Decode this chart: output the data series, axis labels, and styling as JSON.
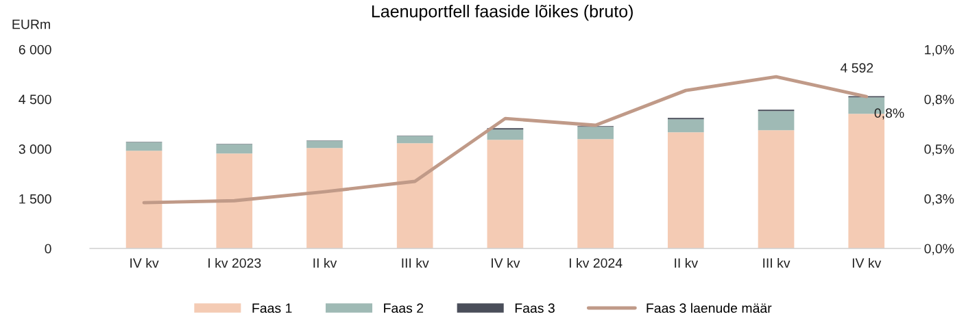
{
  "chart_data": {
    "type": "bar",
    "title": "Laenuportfell faaside lõikes (bruto)",
    "ylabel": "EURm",
    "categories": [
      "IV kv",
      "I kv 2023",
      "II kv",
      "III kv",
      "IV kv",
      "I kv 2024",
      "II kv",
      "III kv",
      "IV kv"
    ],
    "stacked": true,
    "series": [
      {
        "name": "Faas 1",
        "color": "#f4cbb4",
        "values": [
          2946,
          2863,
          3028,
          3172,
          3275,
          3296,
          3502,
          3564,
          4058
        ]
      },
      {
        "name": "Faas 2",
        "color": "#9fbab5",
        "values": [
          259,
          279,
          217,
          218,
          309,
          371,
          391,
          577,
          495
        ]
      },
      {
        "name": "Faas 3",
        "color": "#4a4e5a",
        "values": [
          10,
          10,
          10,
          10,
          42,
          20,
          42,
          41,
          39
        ]
      },
      {
        "name": "Faas 3 laenude määr",
        "type": "line",
        "axis": "y2",
        "color": "#c09a88",
        "values": [
          0.23,
          0.24,
          0.285,
          0.337,
          0.653,
          0.619,
          0.794,
          0.863,
          0.763
        ],
        "value_labels": [
          null,
          null,
          null,
          null,
          null,
          null,
          null,
          null,
          "0,8%"
        ]
      }
    ],
    "totals": [
      null,
      null,
      null,
      null,
      null,
      null,
      null,
      null,
      "4 592"
    ],
    "ylim": [
      0,
      6000
    ],
    "yticks": [
      {
        "value": 0,
        "label": "0"
      },
      {
        "value": 1500,
        "label": "1 500"
      },
      {
        "value": 3000,
        "label": "3 000"
      },
      {
        "value": 4500,
        "label": "4 500"
      },
      {
        "value": 6000,
        "label": "6 000"
      }
    ],
    "y2lim": [
      0,
      1.0
    ],
    "y2ticks": [
      {
        "value": 0,
        "label": "0,0%"
      },
      {
        "value": 0.25,
        "label": "0,3%"
      },
      {
        "value": 0.5,
        "label": "0,5%"
      },
      {
        "value": 0.75,
        "label": "0,8%"
      },
      {
        "value": 1.0,
        "label": "1,0%"
      }
    ],
    "grid": false,
    "legend": "bottom"
  }
}
